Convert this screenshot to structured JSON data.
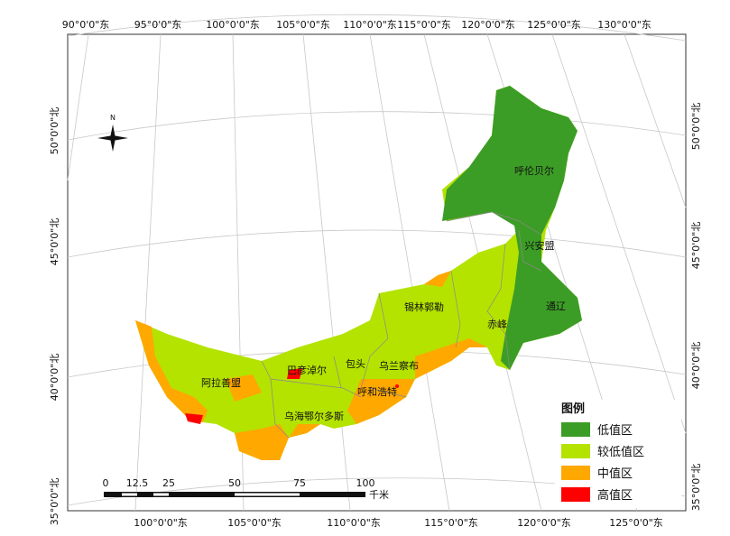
{
  "graticule": {
    "top": [
      "90°0'0\"东",
      "95°0'0\"东",
      "100°0'0\"东",
      "105°0'0\"东",
      "110°0'0\"东",
      "115°0'0\"东",
      "120°0'0\"东",
      "125°0'0\"东",
      "130°0'0\"东"
    ],
    "bottom": [
      "100°0'0\"东",
      "105°0'0\"东",
      "110°0'0\"东",
      "115°0'0\"东",
      "120°0'0\"东",
      "125°0'0\"东"
    ],
    "left": [
      "50°0'0\"北",
      "45°0'0\"北",
      "40°0'0\"北",
      "35°0'0\"北"
    ],
    "right": [
      "50°0'0\"北",
      "45°0'0\"北",
      "40°0'0\"北",
      "35°0'0\"北"
    ]
  },
  "places": [
    "呼伦贝尔",
    "兴安盟",
    "通辽",
    "赤峰",
    "锡林郭勒",
    "乌兰察布",
    "包头",
    "巴彦淖尔",
    "呼和浩特",
    "阿拉善盟",
    "乌海鄂尔多斯"
  ],
  "legend": {
    "title": "图例",
    "items": [
      {
        "label": "低值区",
        "color": "#3c9d26"
      },
      {
        "label": "较低值区",
        "color": "#b4e300"
      },
      {
        "label": "中值区",
        "color": "#ffa800"
      },
      {
        "label": "高值区",
        "color": "#ff0000"
      }
    ]
  },
  "scale_bar": {
    "labels": [
      "0",
      "12.5",
      "25",
      "50",
      "75",
      "100"
    ],
    "unit": "千米"
  },
  "north_arrow": "N"
}
